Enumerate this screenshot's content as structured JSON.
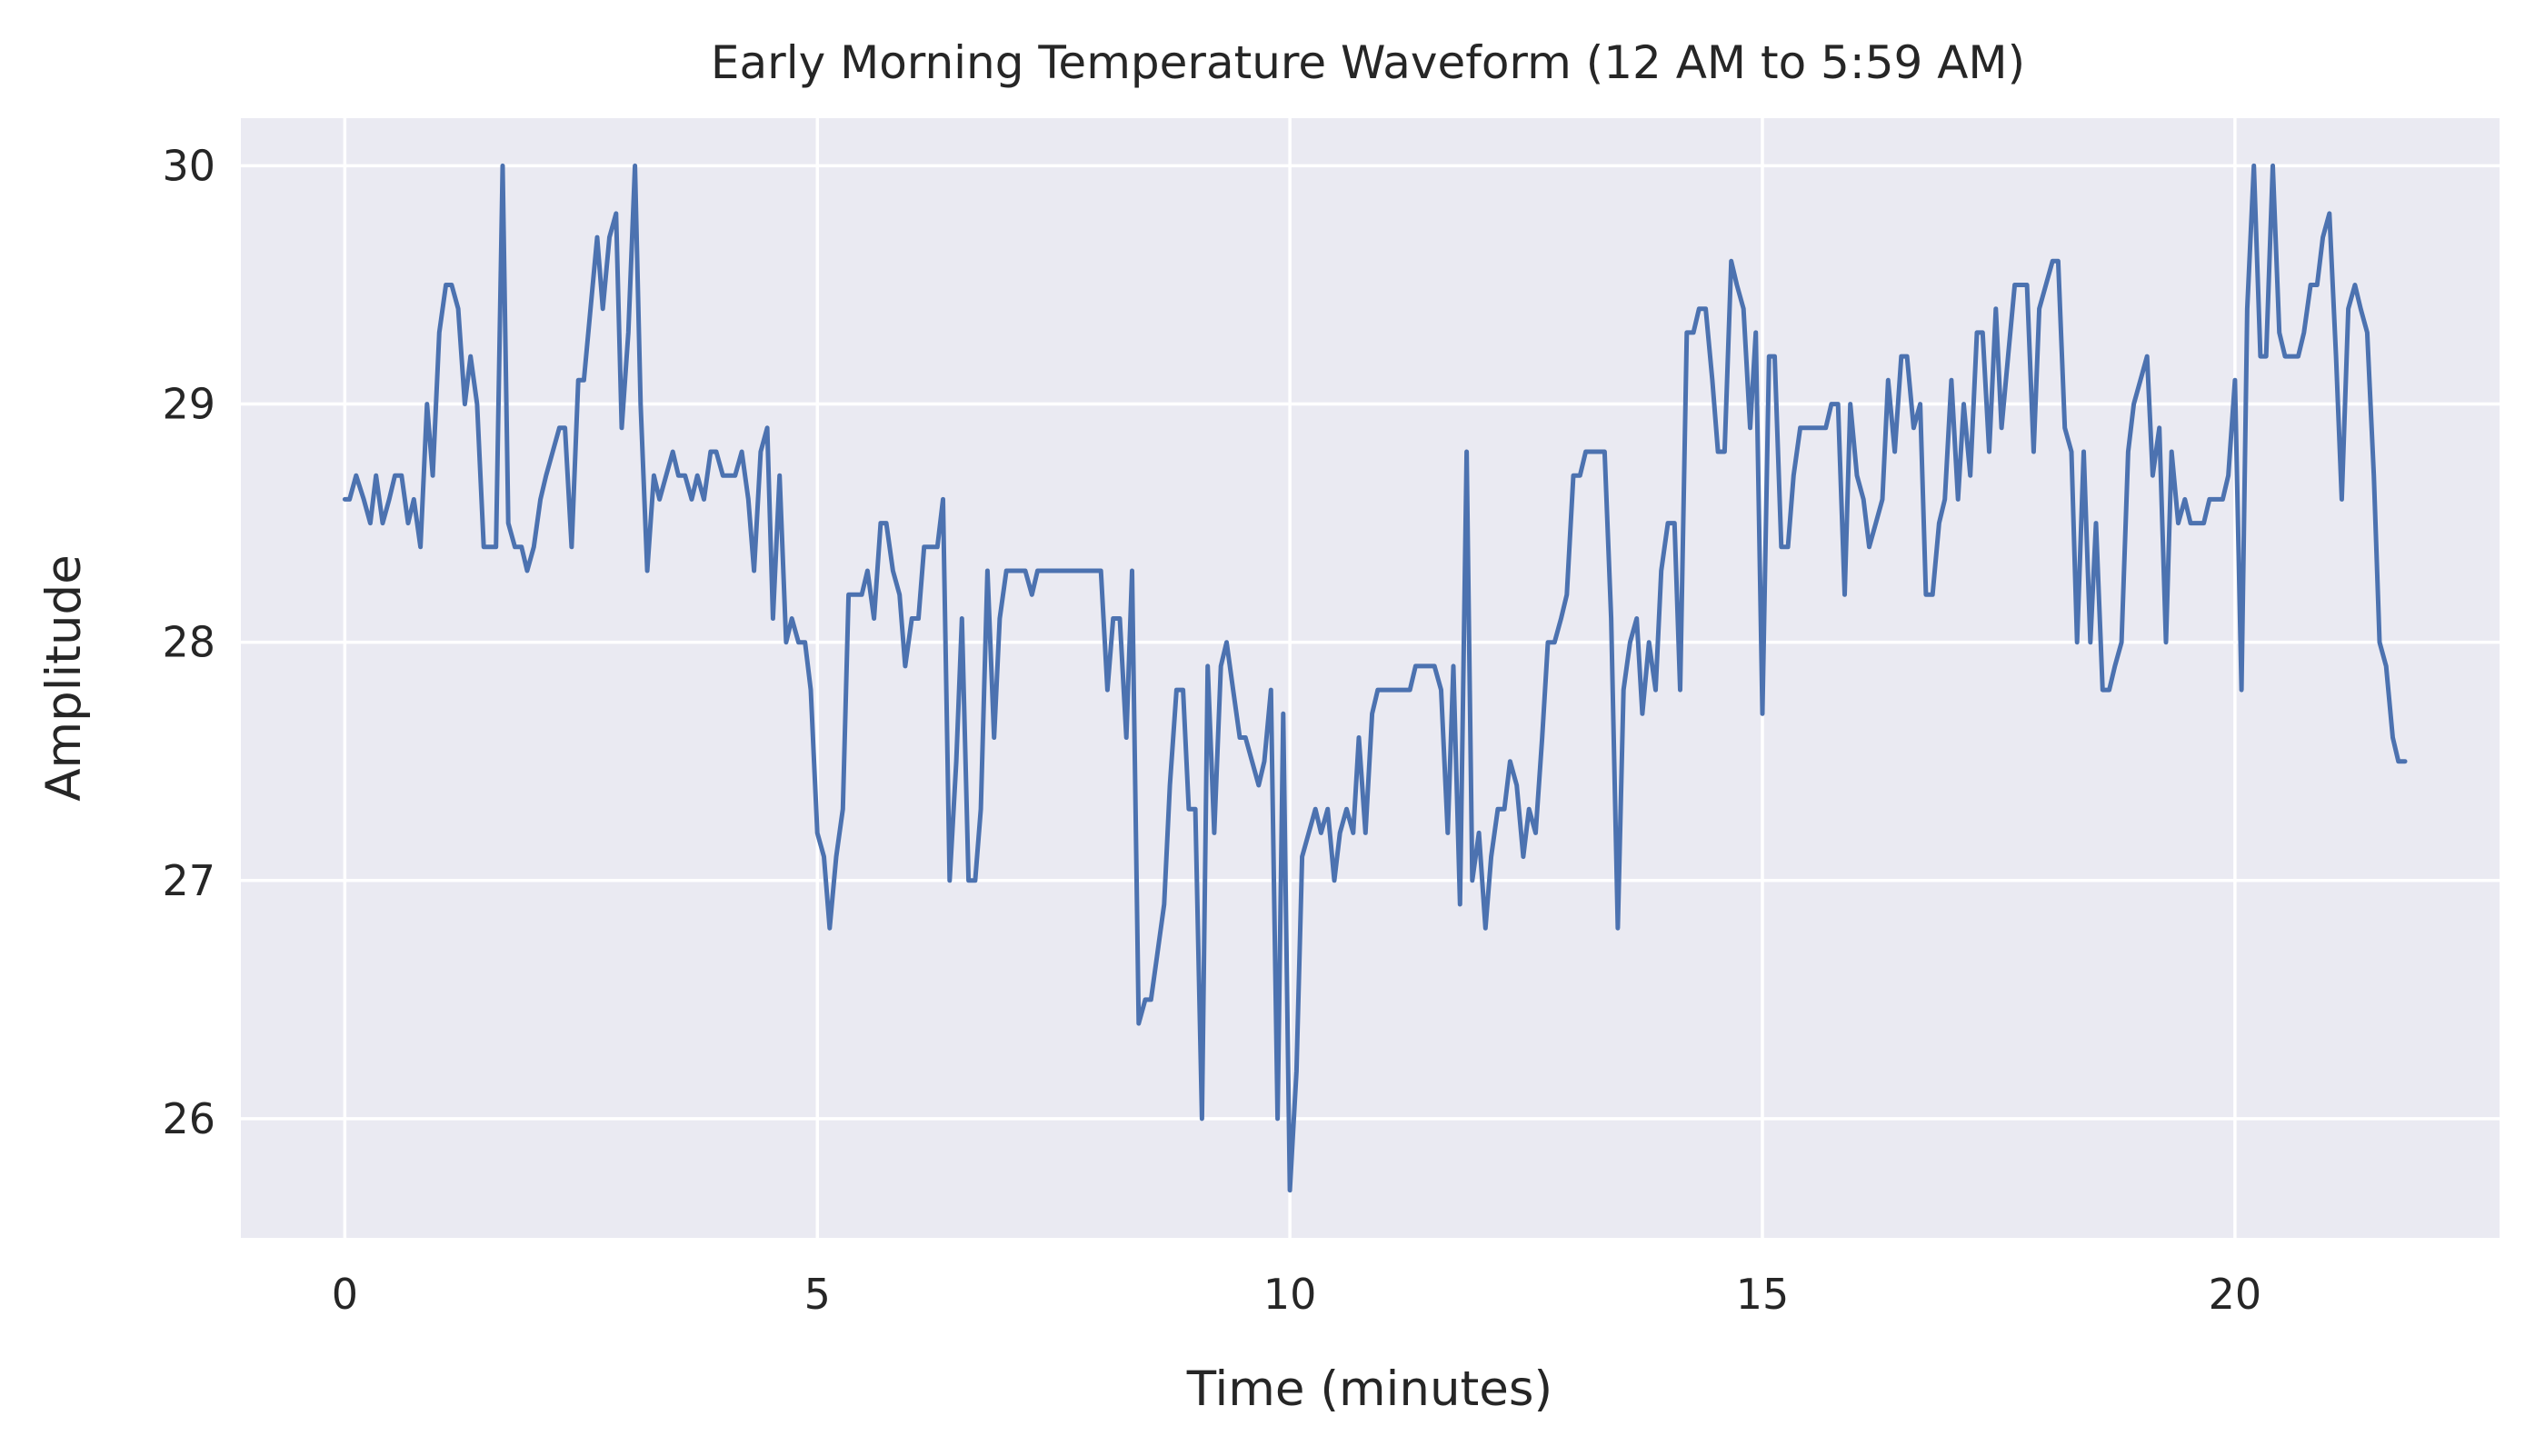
{
  "chart_data": {
    "type": "line",
    "title": "Early Morning Temperature Waveform (12 AM to 5:59 AM)",
    "xlabel": "Time (minutes)",
    "ylabel": "Amplitude",
    "xlim": [
      -1.1,
      22.8
    ],
    "ylim": [
      25.5,
      30.2
    ],
    "x_ticks": [
      0,
      5,
      10,
      15,
      20
    ],
    "x_tick_labels": [
      "0",
      "5",
      "10",
      "15",
      "20"
    ],
    "y_ticks": [
      26,
      27,
      28,
      29,
      30
    ],
    "y_tick_labels": [
      "26",
      "27",
      "28",
      "29",
      "30"
    ],
    "grid": true,
    "background": "#eaeaf2",
    "grid_color": "#ffffff",
    "series": [
      {
        "color": "#4c72b0",
        "x": [
          0,
          0.05,
          0.12,
          0.2,
          0.27,
          0.33,
          0.4,
          0.47,
          0.53,
          0.6,
          0.67,
          0.73,
          0.8,
          0.87,
          0.93,
          1.0,
          1.07,
          1.13,
          1.2,
          1.27,
          1.33,
          1.4,
          1.47,
          1.53,
          1.6,
          1.67,
          1.73,
          1.8,
          1.87,
          1.93,
          2.0,
          2.07,
          2.13,
          2.2,
          2.27,
          2.33,
          2.4,
          2.47,
          2.53,
          2.6,
          2.67,
          2.73,
          2.8,
          2.87,
          2.93,
          3.0,
          3.07,
          3.13,
          3.2,
          3.27,
          3.33,
          3.4,
          3.47,
          3.53,
          3.6,
          3.67,
          3.73,
          3.8,
          3.87,
          3.93,
          4.0,
          4.07,
          4.13,
          4.2,
          4.27,
          4.33,
          4.4,
          4.47,
          4.53,
          4.6,
          4.67,
          4.73,
          4.8,
          4.87,
          4.93,
          5.0,
          5.07,
          5.13,
          5.2,
          5.27,
          5.33,
          5.4,
          5.47,
          5.53,
          5.6,
          5.67,
          5.73,
          5.8,
          5.87,
          5.93,
          6.0,
          6.07,
          6.13,
          6.2,
          6.27,
          6.33,
          6.4,
          6.47,
          6.53,
          6.6,
          6.67,
          6.73,
          6.8,
          6.87,
          6.93,
          7.0,
          7.07,
          7.13,
          7.2,
          7.27,
          7.33,
          7.4,
          7.47,
          7.53,
          7.6,
          7.67,
          7.73,
          7.8,
          7.87,
          7.93,
          8.0,
          8.07,
          8.13,
          8.2,
          8.27,
          8.33,
          8.4,
          8.47,
          8.53,
          8.6,
          8.67,
          8.73,
          8.8,
          8.87,
          8.93,
          9.0,
          9.07,
          9.13,
          9.2,
          9.27,
          9.33,
          9.4,
          9.47,
          9.53,
          9.6,
          9.67,
          9.73,
          9.8,
          9.87,
          9.93,
          10.0,
          10.07,
          10.13,
          10.2,
          10.27,
          10.33,
          10.4,
          10.47,
          10.53,
          10.6,
          10.67,
          10.73,
          10.8,
          10.87,
          10.93,
          11.0,
          11.07,
          11.13,
          11.2,
          11.27,
          11.33,
          11.4,
          11.47,
          11.53,
          11.6,
          11.67,
          11.73,
          11.8,
          11.87,
          11.93,
          12.0,
          12.07,
          12.13,
          12.2,
          12.27,
          12.33,
          12.4,
          12.47,
          12.53,
          12.6,
          12.67,
          12.73,
          12.8,
          12.87,
          12.93,
          13.0,
          13.07,
          13.13,
          13.2,
          13.27,
          13.33,
          13.4,
          13.47,
          13.53,
          13.6,
          13.67,
          13.73,
          13.8,
          13.87,
          13.93,
          14.0,
          14.07,
          14.13,
          14.2,
          14.27,
          14.33,
          14.4,
          14.47,
          14.53,
          14.6,
          14.67,
          14.73,
          14.8,
          14.87,
          14.93,
          15.0,
          15.07,
          15.13,
          15.2,
          15.27,
          15.33,
          15.4,
          15.47,
          15.53,
          15.6,
          15.67,
          15.73,
          15.8,
          15.87,
          15.93,
          16.0,
          16.07,
          16.13,
          16.2,
          16.27,
          16.33,
          16.4,
          16.47,
          16.53,
          16.6,
          16.67,
          16.73,
          16.8,
          16.87,
          16.93,
          17.0,
          17.07,
          17.13,
          17.2,
          17.27,
          17.33,
          17.4,
          17.47,
          17.53,
          17.6,
          17.67,
          17.73,
          17.8,
          17.87,
          17.93,
          18.0,
          18.07,
          18.13,
          18.2,
          18.27,
          18.33,
          18.4,
          18.47,
          18.53,
          18.6,
          18.67,
          18.73,
          18.8,
          18.87,
          18.93,
          19.0,
          19.07,
          19.13,
          19.2,
          19.27,
          19.33,
          19.4,
          19.47,
          19.53,
          19.6,
          19.67,
          19.73,
          19.8,
          19.87,
          19.93,
          20.0,
          20.07,
          20.13,
          20.2,
          20.27,
          20.33,
          20.4,
          20.47,
          20.53,
          20.6,
          20.67,
          20.73,
          20.8,
          20.87,
          20.93,
          21.0,
          21.07,
          21.13,
          21.2,
          21.27,
          21.33,
          21.4,
          21.47,
          21.53,
          21.6,
          21.67,
          21.73,
          21.8
        ],
        "y": [
          28.6,
          28.6,
          28.7,
          28.6,
          28.5,
          28.7,
          28.5,
          28.6,
          28.7,
          28.7,
          28.5,
          28.6,
          28.4,
          29.0,
          28.7,
          29.3,
          29.5,
          29.5,
          29.4,
          29.0,
          29.2,
          29.0,
          28.4,
          28.4,
          28.4,
          30.0,
          28.5,
          28.4,
          28.4,
          28.3,
          28.4,
          28.6,
          28.7,
          28.8,
          28.9,
          28.9,
          28.4,
          29.1,
          29.1,
          29.4,
          29.7,
          29.4,
          29.7,
          29.8,
          28.9,
          29.3,
          30.0,
          29.0,
          28.3,
          28.7,
          28.6,
          28.7,
          28.8,
          28.7,
          28.7,
          28.6,
          28.7,
          28.6,
          28.8,
          28.8,
          28.7,
          28.7,
          28.7,
          28.8,
          28.6,
          28.3,
          28.8,
          28.9,
          28.1,
          28.7,
          28.0,
          28.1,
          28.0,
          28.0,
          27.8,
          27.2,
          27.1,
          26.8,
          27.1,
          27.3,
          28.2,
          28.2,
          28.2,
          28.3,
          28.1,
          28.5,
          28.5,
          28.3,
          28.2,
          27.9,
          28.1,
          28.1,
          28.4,
          28.4,
          28.4,
          28.6,
          27.0,
          27.5,
          28.1,
          27.0,
          27.0,
          27.3,
          28.3,
          27.6,
          28.1,
          28.3,
          28.3,
          28.3,
          28.3,
          28.2,
          28.3,
          28.3,
          28.3,
          28.3,
          28.3,
          28.3,
          28.3,
          28.3,
          28.3,
          28.3,
          28.3,
          27.8,
          28.1,
          28.1,
          27.6,
          28.3,
          26.4,
          26.5,
          26.5,
          26.7,
          26.9,
          27.4,
          27.8,
          27.8,
          27.3,
          27.3,
          26.0,
          27.9,
          27.2,
          27.9,
          28.0,
          27.8,
          27.6,
          27.6,
          27.5,
          27.4,
          27.5,
          27.8,
          26.0,
          27.7,
          25.7,
          26.2,
          27.1,
          27.2,
          27.3,
          27.2,
          27.3,
          27.0,
          27.2,
          27.3,
          27.2,
          27.6,
          27.2,
          27.7,
          27.8,
          27.8,
          27.8,
          27.8,
          27.8,
          27.8,
          27.9,
          27.9,
          27.9,
          27.9,
          27.8,
          27.2,
          27.9,
          26.9,
          28.8,
          27.0,
          27.2,
          26.8,
          27.1,
          27.3,
          27.3,
          27.5,
          27.4,
          27.1,
          27.3,
          27.2,
          27.6,
          28.0,
          28.0,
          28.1,
          28.2,
          28.7,
          28.7,
          28.8,
          28.8,
          28.8,
          28.8,
          28.1,
          26.8,
          27.8,
          28.0,
          28.1,
          27.7,
          28.0,
          27.8,
          28.3,
          28.5,
          28.5,
          27.8,
          29.3,
          29.3,
          29.4,
          29.4,
          29.1,
          28.8,
          28.8,
          29.6,
          29.5,
          29.4,
          28.9,
          29.3,
          27.7,
          29.2,
          29.2,
          28.4,
          28.4,
          28.7,
          28.9,
          28.9,
          28.9,
          28.9,
          28.9,
          29.0,
          29.0,
          28.2,
          29.0,
          28.7,
          28.6,
          28.4,
          28.5,
          28.6,
          29.1,
          28.8,
          29.2,
          29.2,
          28.9,
          29.0,
          28.2,
          28.2,
          28.5,
          28.6,
          29.1,
          28.6,
          29.0,
          28.7,
          29.3,
          29.3,
          28.8,
          29.4,
          28.9,
          29.2,
          29.5,
          29.5,
          29.5,
          28.8,
          29.4,
          29.5,
          29.6,
          29.6,
          28.9,
          28.8,
          28.0,
          28.8,
          28.0,
          28.5,
          27.8,
          27.8,
          27.9,
          28.0,
          28.8,
          29.0,
          29.1,
          29.2,
          28.7,
          28.9,
          28.0,
          28.8,
          28.5,
          28.6,
          28.5,
          28.5,
          28.5,
          28.6,
          28.6,
          28.6,
          28.7,
          29.1,
          27.8,
          29.4,
          30.0,
          29.2,
          29.2,
          30.0,
          29.3,
          29.2,
          29.2,
          29.2,
          29.3,
          29.5,
          29.5,
          29.7,
          29.8,
          29.2,
          28.6,
          29.4,
          29.5,
          29.4,
          29.3,
          28.7,
          28.0,
          27.9,
          27.6,
          27.5,
          27.5
        ]
      }
    ]
  }
}
